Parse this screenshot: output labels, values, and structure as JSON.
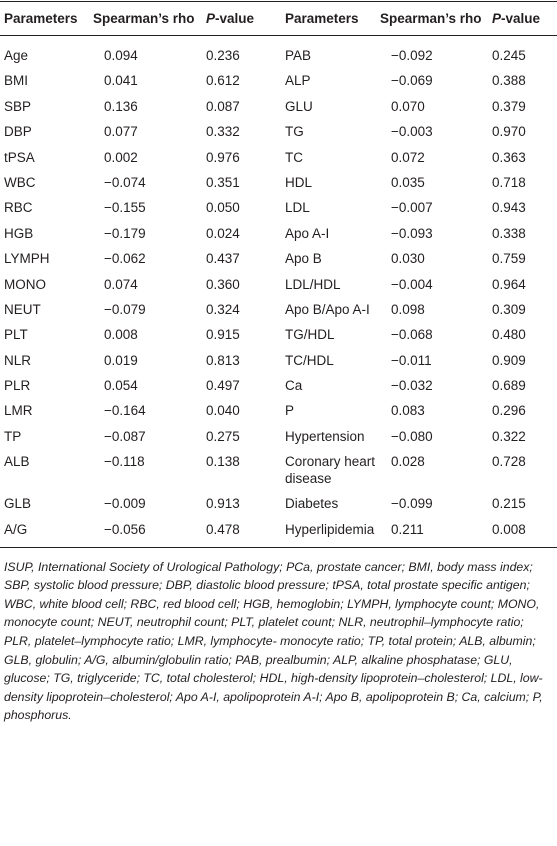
{
  "table": {
    "header": [
      "Parameters",
      "Spearman’s rho",
      "P-value",
      "Parameters",
      "Spearman’s rho",
      "P-value"
    ],
    "rows": [
      [
        "Age",
        "0.094",
        "0.236",
        "PAB",
        "−0.092",
        "0.245"
      ],
      [
        "BMI",
        "0.041",
        "0.612",
        "ALP",
        "−0.069",
        "0.388"
      ],
      [
        "SBP",
        "0.136",
        "0.087",
        "GLU",
        "0.070",
        "0.379"
      ],
      [
        "DBP",
        "0.077",
        "0.332",
        "TG",
        "−0.003",
        "0.970"
      ],
      [
        "tPSA",
        "0.002",
        "0.976",
        "TC",
        "0.072",
        "0.363"
      ],
      [
        "WBC",
        "−0.074",
        "0.351",
        "HDL",
        "0.035",
        "0.718"
      ],
      [
        "RBC",
        "−0.155",
        "0.050",
        "LDL",
        "−0.007",
        "0.943"
      ],
      [
        "HGB",
        "−0.179",
        "0.024",
        "Apo A-I",
        "−0.093",
        "0.338"
      ],
      [
        "LYMPH",
        "−0.062",
        "0.437",
        "Apo B",
        "0.030",
        "0.759"
      ],
      [
        "MONO",
        "0.074",
        "0.360",
        "LDL/HDL",
        "−0.004",
        "0.964"
      ],
      [
        "NEUT",
        "−0.079",
        "0.324",
        "Apo B/Apo A-I",
        "0.098",
        "0.309"
      ],
      [
        "PLT",
        "0.008",
        "0.915",
        "TG/HDL",
        "−0.068",
        "0.480"
      ],
      [
        "NLR",
        "0.019",
        "0.813",
        "TC/HDL",
        "−0.011",
        "0.909"
      ],
      [
        "PLR",
        "0.054",
        "0.497",
        "Ca",
        "−0.032",
        "0.689"
      ],
      [
        "LMR",
        "−0.164",
        "0.040",
        "P",
        "0.083",
        "0.296"
      ],
      [
        "TP",
        "−0.087",
        "0.275",
        "Hypertension",
        "−0.080",
        "0.322"
      ],
      [
        "ALB",
        "−0.118",
        "0.138",
        "Coronary heart disease",
        "0.028",
        "0.728"
      ],
      [
        "GLB",
        "−0.009",
        "0.913",
        "Diabetes",
        "−0.099",
        "0.215"
      ],
      [
        "A/G",
        "−0.056",
        "0.478",
        "Hyperlipidemia",
        "0.211",
        "0.008"
      ]
    ]
  },
  "footnote": "ISUP, International Society of Urological Pathology; PCa, prostate cancer; BMI, body mass index; SBP, systolic blood pressure; DBP, diastolic blood pressure; tPSA, total prostate specific antigen; WBC, white blood cell; RBC, red blood cell; HGB, hemoglobin; LYMPH, lymphocyte count; MONO, monocyte count; NEUT, neutrophil count; PLT, platelet count; NLR, neutrophil–lymphocyte ratio; PLR, platelet–lymphocyte ratio; LMR, lymphocyte- monocyte ratio; TP, total protein; ALB, albumin; GLB, globulin; A/G, albumin/globulin ratio; PAB, prealbumin; ALP, alkaline phosphatase; GLU, glucose; TG, triglyceride; TC, total cholesterol; HDL, high-density lipoprotein–cholesterol; LDL, low-density lipoprotein–cholesterol; Apo A-I, apolipoprotein A-I; Apo B, apolipoprotein B; Ca, calcium; P, phosphorus."
}
